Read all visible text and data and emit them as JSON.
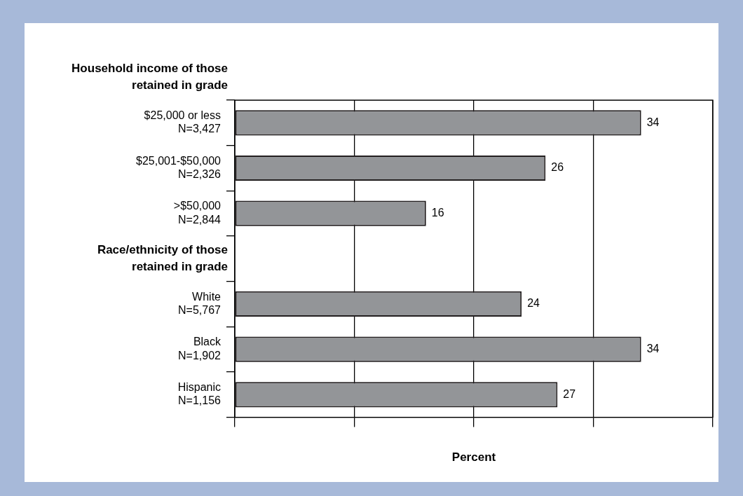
{
  "chart_data": {
    "type": "bar",
    "orientation": "horizontal",
    "categories": [
      "$25,000 or less\nN=3,427",
      "$25,001-$50,000\nN=2,326",
      ">$50,000\nN=2,844",
      null,
      "White\nN=5,767",
      "Black\nN=1,902",
      "Hispanic\nN=1,156"
    ],
    "values": [
      34,
      26,
      16,
      null,
      24,
      34,
      27
    ],
    "color": "#939598",
    "xlim": [
      0,
      40
    ],
    "xticks": [
      {
        "value": 0,
        "label": null
      },
      {
        "value": 10,
        "label": null
      },
      {
        "value": 20,
        "label": null
      },
      {
        "value": 30,
        "label": null
      },
      {
        "value": 40,
        "label": null
      }
    ],
    "xlabel": "Percent",
    "annotations": [
      "Household income of those retained in grade",
      "Race/ethnicity of those retained in grade"
    ],
    "data_labels": true,
    "grid": "x",
    "tick_labels": "y",
    "legend": false
  }
}
